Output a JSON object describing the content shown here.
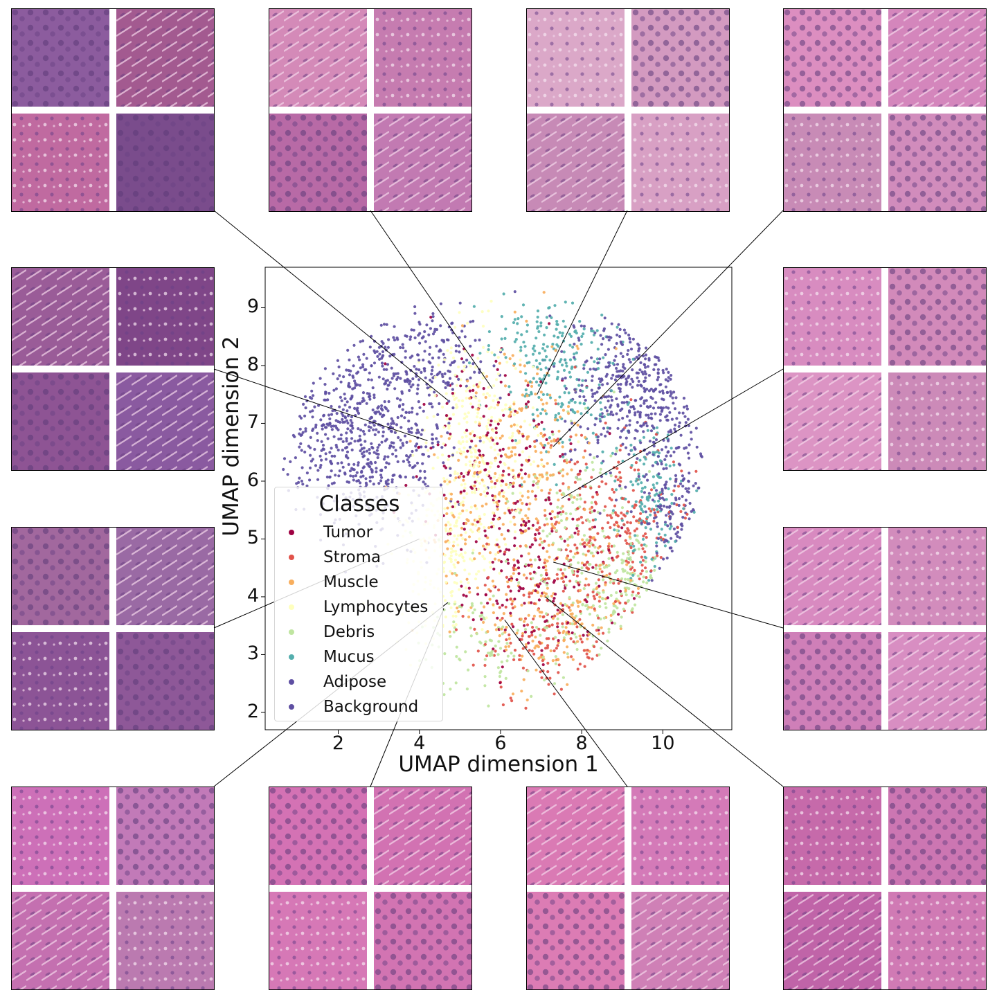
{
  "chart_data": {
    "type": "scatter",
    "xlabel": "UMAP dimension 1",
    "ylabel": "UMAP dimension 2",
    "xlim": [
      0.2,
      11.7
    ],
    "ylim": [
      1.7,
      9.7
    ],
    "xticks": [
      "2",
      "4",
      "6",
      "8",
      "10"
    ],
    "yticks": [
      "2",
      "3",
      "4",
      "5",
      "6",
      "7",
      "8",
      "9"
    ],
    "grid": false,
    "legend": {
      "title": "Classes",
      "placement": "lower-left",
      "entries": [
        "Tumor",
        "Stroma",
        "Muscle",
        "Lymphocytes",
        "Debris",
        "Mucus",
        "Adipose",
        "Background"
      ]
    },
    "series": [
      {
        "name": "Tumor",
        "color": "#9e0142",
        "clusters": [
          [
            6.3,
            5.6,
            1.2,
            1.4,
            150
          ],
          [
            7.0,
            4.3,
            1.3,
            1.0,
            120
          ],
          [
            5.2,
            6.8,
            1.0,
            1.0,
            70
          ]
        ]
      },
      {
        "name": "Stroma",
        "color": "#e1524a",
        "clusters": [
          [
            8.2,
            5.3,
            1.2,
            1.2,
            200
          ],
          [
            7.0,
            3.2,
            1.2,
            0.8,
            140
          ],
          [
            9.5,
            5.0,
            0.8,
            0.9,
            90
          ]
        ]
      },
      {
        "name": "Muscle",
        "color": "#f8ae5d",
        "clusters": [
          [
            6.8,
            6.6,
            1.1,
            1.3,
            200
          ],
          [
            7.6,
            3.7,
            1.3,
            1.0,
            200
          ],
          [
            5.4,
            5.2,
            1.0,
            1.2,
            120
          ]
        ]
      },
      {
        "name": "Lymphocytes",
        "color": "#feffbe",
        "clusters": [
          [
            5.5,
            6.6,
            0.9,
            1.3,
            320
          ],
          [
            4.5,
            4.6,
            0.8,
            1.0,
            180
          ]
        ]
      },
      {
        "name": "Debris",
        "color": "#bfe5a0",
        "clusters": [
          [
            8.9,
            4.1,
            1.0,
            0.8,
            160
          ],
          [
            5.9,
            3.2,
            1.2,
            0.8,
            120
          ],
          [
            7.8,
            5.5,
            0.9,
            1.0,
            100
          ]
        ]
      },
      {
        "name": "Mucus",
        "color": "#54aead",
        "clusters": [
          [
            7.5,
            7.8,
            1.0,
            0.9,
            180
          ],
          [
            9.6,
            5.6,
            0.6,
            0.9,
            140
          ],
          [
            6.8,
            8.6,
            0.8,
            0.5,
            60
          ]
        ]
      },
      {
        "name": "Adipose",
        "color": "#5e4fa2",
        "clusters": [
          [
            2.5,
            6.9,
            1.4,
            1.0,
            620
          ],
          [
            9.4,
            7.7,
            1.2,
            1.0,
            420
          ],
          [
            4.2,
            8.2,
            1.0,
            0.6,
            160
          ],
          [
            10.3,
            5.6,
            0.5,
            0.9,
            140
          ]
        ]
      },
      {
        "name": "Background",
        "color": "#5e4fa2",
        "clusters": [
          [
            3.1,
            5.7,
            0.9,
            0.8,
            60
          ]
        ]
      }
    ]
  },
  "insets": {
    "panels": [
      {
        "label": "top-1",
        "anchor": [
          4.7,
          7.4
        ],
        "palette": [
          "#8c5c9e",
          "#a35a90",
          "#c06aa0",
          "#7a4c8c"
        ]
      },
      {
        "label": "top-2",
        "anchor": [
          5.8,
          7.6
        ],
        "palette": [
          "#d48ab8",
          "#c67cb0",
          "#b86aa6",
          "#c27ab2"
        ]
      },
      {
        "label": "top-3",
        "anchor": [
          6.9,
          7.5
        ],
        "palette": [
          "#dba8c8",
          "#d39ac0",
          "#c78ab6",
          "#d8a0c4"
        ]
      },
      {
        "label": "top-4",
        "anchor": [
          7.3,
          6.6
        ],
        "palette": [
          "#dc8ec0",
          "#d486bc",
          "#c88bb6",
          "#d18cbc"
        ]
      },
      {
        "label": "left-1",
        "anchor": [
          4.2,
          6.7
        ],
        "palette": [
          "#9a5c98",
          "#7f4688",
          "#8e5494",
          "#8a5aa0"
        ]
      },
      {
        "label": "right-1",
        "anchor": [
          7.5,
          5.7
        ],
        "palette": [
          "#d88cc0",
          "#d28aba",
          "#dc94c4",
          "#cc8ab8"
        ]
      },
      {
        "label": "left-2",
        "anchor": [
          4.0,
          5.0
        ],
        "palette": [
          "#a2689e",
          "#9a6aa4",
          "#8c5496",
          "#8e5898"
        ]
      },
      {
        "label": "right-2",
        "anchor": [
          7.3,
          4.6
        ],
        "palette": [
          "#d88ac0",
          "#d28cbc",
          "#cf7fb8",
          "#d88ec2"
        ]
      },
      {
        "label": "bottom-1",
        "anchor": [
          4.7,
          3.9
        ],
        "palette": [
          "#cd70b8",
          "#c27ab8",
          "#c470b0",
          "#bb7ab0"
        ]
      },
      {
        "label": "bottom-2",
        "anchor": [
          4.6,
          3.8
        ],
        "palette": [
          "#d472b4",
          "#d272b2",
          "#d678b6",
          "#d274b2"
        ]
      },
      {
        "label": "bottom-3",
        "anchor": [
          6.1,
          3.6
        ],
        "palette": [
          "#da7ab4",
          "#d47ab8",
          "#dc7cb4",
          "#cf80b6"
        ]
      },
      {
        "label": "bottom-4",
        "anchor": [
          7.1,
          4.0
        ],
        "palette": [
          "#c66aaa",
          "#cc76b2",
          "#c064a8",
          "#d07ab4"
        ]
      }
    ]
  }
}
